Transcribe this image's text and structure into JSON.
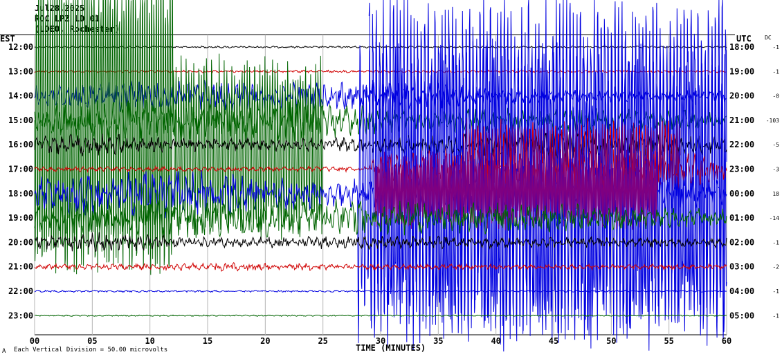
{
  "header": {
    "date": "Jul28,2025",
    "station": "ROC LPZ LD 01",
    "site": "(LDEO, Rochester)"
  },
  "labels": {
    "left_timezone": "EST",
    "right_timezone": "UTC",
    "dc_header": "DC",
    "footer_mark": "A",
    "footer_scale": "Each Vertical Division = 50.00 microvolts"
  },
  "chart_data": {
    "type": "line",
    "title": "",
    "xlabel": "TIME (MINUTES)",
    "xlim": [
      0,
      60
    ],
    "x_ticks": [
      "00",
      "05",
      "10",
      "15",
      "20",
      "25",
      "30",
      "35",
      "40",
      "45",
      "50",
      "55",
      "60"
    ],
    "trace_colors": [
      "#000000",
      "#d00000",
      "#0000e0",
      "#006400"
    ],
    "rows": [
      {
        "est": "12:00",
        "utc": "18:00",
        "dc": "-1",
        "color": "#000000"
      },
      {
        "est": "13:00",
        "utc": "19:00",
        "dc": "-1",
        "color": "#d00000"
      },
      {
        "est": "14:00",
        "utc": "20:00",
        "dc": "-0",
        "color": "#0000e0"
      },
      {
        "est": "15:00",
        "utc": "21:00",
        "dc": "-103",
        "color": "#006400"
      },
      {
        "est": "16:00",
        "utc": "22:00",
        "dc": "-5",
        "color": "#000000"
      },
      {
        "est": "17:00",
        "utc": "23:00",
        "dc": "-3",
        "color": "#d00000"
      },
      {
        "est": "18:00",
        "utc": "00:00",
        "dc": "18",
        "color": "#0000e0"
      },
      {
        "est": "19:00",
        "utc": "01:00",
        "dc": "-14",
        "color": "#006400"
      },
      {
        "est": "20:00",
        "utc": "02:00",
        "dc": "-1",
        "color": "#000000"
      },
      {
        "est": "21:00",
        "utc": "03:00",
        "dc": "-2",
        "color": "#d00000"
      },
      {
        "est": "22:00",
        "utc": "04:00",
        "dc": "-1",
        "color": "#0000e0"
      },
      {
        "est": "23:00",
        "utc": "05:00",
        "dc": "-1",
        "color": "#006400"
      }
    ],
    "grid": true
  }
}
